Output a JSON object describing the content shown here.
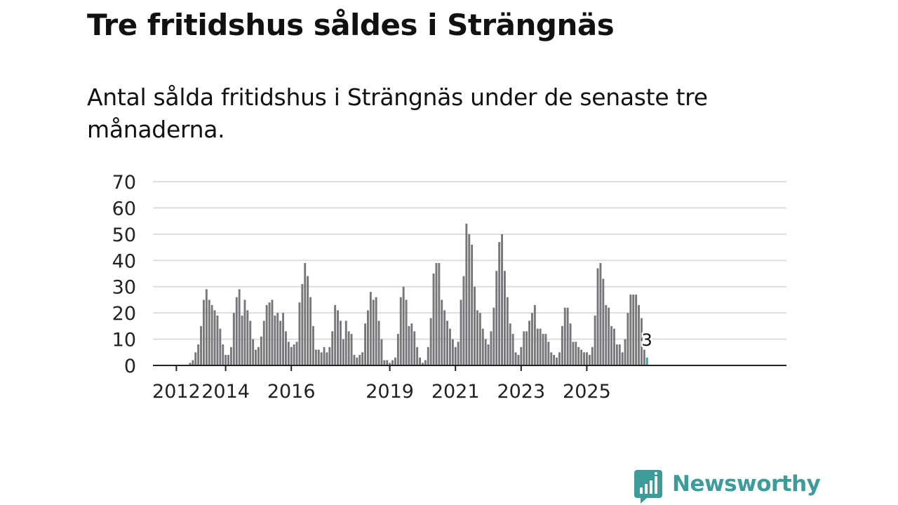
{
  "title": "Tre fritidshus såldes i Strängnäs",
  "subtitle": "Antal sålda fritidshus i Strängnäs under de senaste tre månaderna.",
  "brand": {
    "name": "Newsworthy",
    "color": "#3d9c99",
    "icon": "newsworthy-logo-icon"
  },
  "chart_data": {
    "type": "bar",
    "title": "",
    "xlabel": "",
    "ylabel": "",
    "ylim": [
      0,
      70
    ],
    "yticks": [
      0,
      10,
      20,
      30,
      40,
      50,
      60,
      70
    ],
    "grid": true,
    "x_start": "2012-01",
    "xticks": [
      {
        "label": "2012",
        "month": "2012-07"
      },
      {
        "label": "2014",
        "month": "2014-01"
      },
      {
        "label": "2016",
        "month": "2016-01"
      },
      {
        "label": "2019",
        "month": "2019-01"
      },
      {
        "label": "2021",
        "month": "2021-01"
      },
      {
        "label": "2023",
        "month": "2023-01"
      },
      {
        "label": "2025",
        "month": "2025-01"
      }
    ],
    "bar_color": "#76767b",
    "highlight_color": "#29a8ab",
    "highlight_label": "3",
    "values": [
      0,
      0,
      0,
      0,
      0,
      0,
      0,
      0,
      0,
      0,
      0,
      1,
      2,
      5,
      8,
      15,
      25,
      29,
      25,
      23,
      21,
      19,
      14,
      8,
      4,
      4,
      7,
      20,
      26,
      29,
      19,
      25,
      21,
      17,
      10,
      6,
      7,
      11,
      17,
      23,
      24,
      25,
      19,
      20,
      17,
      20,
      13,
      9,
      7,
      8,
      9,
      24,
      31,
      39,
      34,
      26,
      15,
      6,
      6,
      5,
      7,
      5,
      7,
      13,
      23,
      21,
      17,
      10,
      17,
      13,
      12,
      4,
      3,
      4,
      5,
      16,
      21,
      28,
      25,
      26,
      17,
      10,
      2,
      2,
      1,
      2,
      3,
      12,
      26,
      30,
      25,
      15,
      16,
      13,
      7,
      3,
      1,
      2,
      7,
      18,
      35,
      39,
      39,
      25,
      21,
      17,
      14,
      10,
      7,
      9,
      25,
      34,
      54,
      50,
      46,
      30,
      21,
      20,
      14,
      10,
      8,
      13,
      22,
      36,
      47,
      50,
      36,
      26,
      16,
      12,
      5,
      4,
      7,
      13,
      13,
      17,
      20,
      23,
      14,
      14,
      12,
      12,
      9,
      5,
      4,
      3,
      5,
      15,
      22,
      22,
      16,
      9,
      9,
      7,
      6,
      5,
      5,
      4,
      7,
      19,
      37,
      39,
      33,
      23,
      22,
      15,
      14,
      8,
      8,
      5,
      10,
      20,
      27,
      27,
      27,
      23,
      18,
      6,
      3
    ]
  }
}
